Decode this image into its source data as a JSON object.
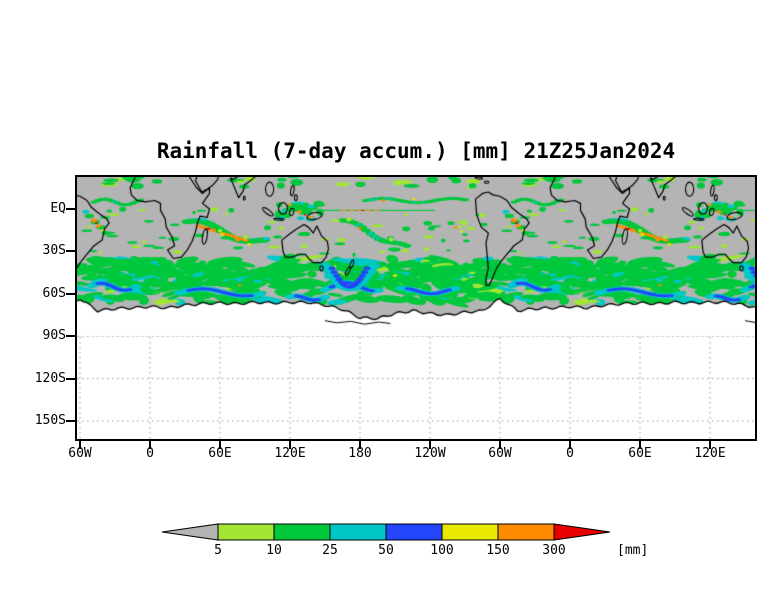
{
  "title": "Rainfall (7-day accum.) [mm] 21Z25Jan2024",
  "axes": {
    "y_labels": [
      "EQ",
      "30S",
      "60S",
      "90S",
      "120S",
      "150S"
    ],
    "x_labels": [
      "60W",
      "0",
      "60E",
      "120E",
      "180",
      "120W",
      "60W",
      "0",
      "60E",
      "120E"
    ]
  },
  "legend": {
    "unit": "[mm]",
    "tick_labels": [
      "5",
      "10",
      "25",
      "50",
      "100",
      "150",
      "300"
    ],
    "colors": [
      "#b4b4b4",
      "#a0e632",
      "#00c83c",
      "#00c8c8",
      "#2346fa",
      "#e8e800",
      "#ff8c00",
      "#e60000"
    ]
  },
  "map": {
    "background": "#ffffff",
    "no_data_color": "#b4b4b4",
    "antarctica_fill": "#ffffff",
    "coastline_color": "#000000",
    "gridline_color": "#9a9a9a"
  }
}
